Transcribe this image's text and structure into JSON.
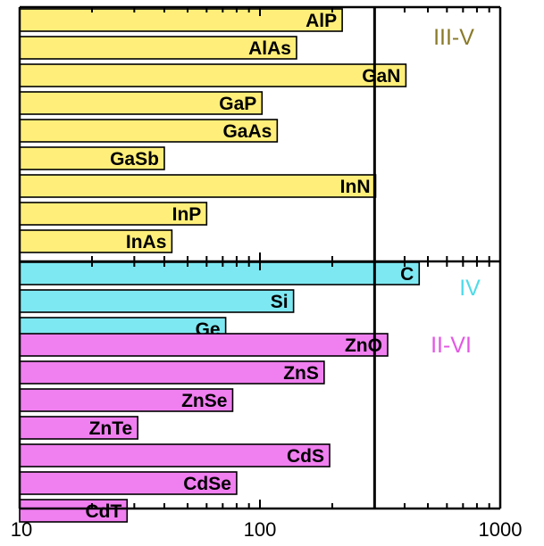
{
  "chart_data": {
    "type": "bar",
    "orientation": "horizontal",
    "x_scale": "log",
    "xlim": [
      10,
      1000
    ],
    "x_ticks": [
      {
        "value": 10,
        "label": "10"
      },
      {
        "value": 100,
        "label": "100"
      },
      {
        "value": 1000,
        "label": "1000"
      }
    ],
    "reference_line_x": 300,
    "groups": [
      {
        "name": "III-V",
        "color": "#ffef7a",
        "label_color": "#8a7a2a",
        "bars": [
          {
            "label": "AlP",
            "value": 220
          },
          {
            "label": "AlAs",
            "value": 142
          },
          {
            "label": "GaN",
            "value": 405
          },
          {
            "label": "GaP",
            "value": 102
          },
          {
            "label": "GaAs",
            "value": 118
          },
          {
            "label": "GaSb",
            "value": 40
          },
          {
            "label": "InN",
            "value": 303
          },
          {
            "label": "InP",
            "value": 60
          },
          {
            "label": "InAs",
            "value": 43
          }
        ]
      },
      {
        "name": "IV",
        "color": "#7ee8f2",
        "label_color": "#4fdbe8",
        "bars": [
          {
            "label": "C",
            "value": 460
          },
          {
            "label": "Si",
            "value": 138
          },
          {
            "label": "Ge",
            "value": 72
          }
        ]
      },
      {
        "name": "II-VI",
        "color": "#f07ff0",
        "label_color": "#e457e4",
        "bars": [
          {
            "label": "ZnO",
            "value": 340
          },
          {
            "label": "ZnS",
            "value": 185
          },
          {
            "label": "ZnSe",
            "value": 77
          },
          {
            "label": "ZnTe",
            "value": 31
          },
          {
            "label": "CdS",
            "value": 195
          },
          {
            "label": "CdSe",
            "value": 80
          },
          {
            "label": "CdT",
            "value": 28
          }
        ]
      }
    ],
    "grid": false
  }
}
